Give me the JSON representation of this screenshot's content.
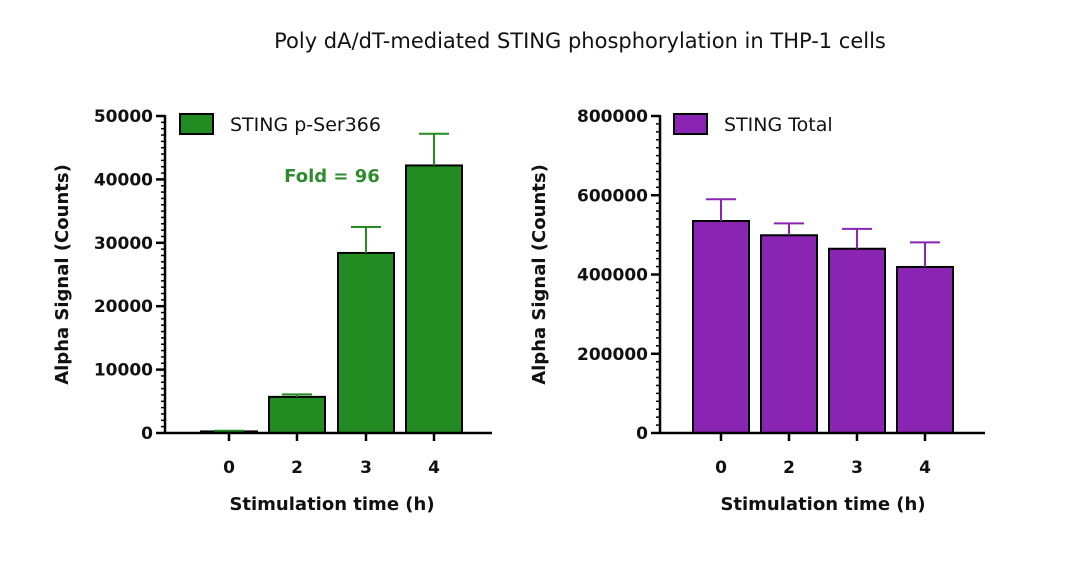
{
  "title": "Poly dA/dT-mediated STING phosphorylation in THP-1 cells",
  "chart_data": [
    {
      "type": "bar",
      "categories": [
        "0",
        "2",
        "3",
        "4"
      ],
      "series": [
        {
          "name": "STING p-Ser366",
          "values": [
            250,
            5700,
            28400,
            42200
          ],
          "errors": [
            100,
            400,
            4100,
            5000
          ],
          "color": "#228b22"
        }
      ],
      "xlabel": "Stimulation time (h)",
      "ylabel": "Alpha Signal (Counts)",
      "ylim": [
        0,
        50000
      ],
      "yticks": [
        0,
        10000,
        20000,
        30000,
        40000,
        50000
      ],
      "annotation": {
        "text": "Fold = 96",
        "color": "#2e8b2e"
      },
      "legend_position": "top-left",
      "grid": false
    },
    {
      "type": "bar",
      "categories": [
        "0",
        "2",
        "3",
        "4"
      ],
      "series": [
        {
          "name": "STING Total",
          "values": [
            535000,
            499000,
            465000,
            419000
          ],
          "errors": [
            55000,
            30000,
            50000,
            62000
          ],
          "color": "#8a24b2"
        }
      ],
      "xlabel": "Stimulation time (h)",
      "ylabel": "Alpha Signal (Counts)",
      "ylim": [
        0,
        800000
      ],
      "yticks": [
        0,
        200000,
        400000,
        600000,
        800000
      ],
      "legend_position": "top-left",
      "grid": false
    }
  ]
}
